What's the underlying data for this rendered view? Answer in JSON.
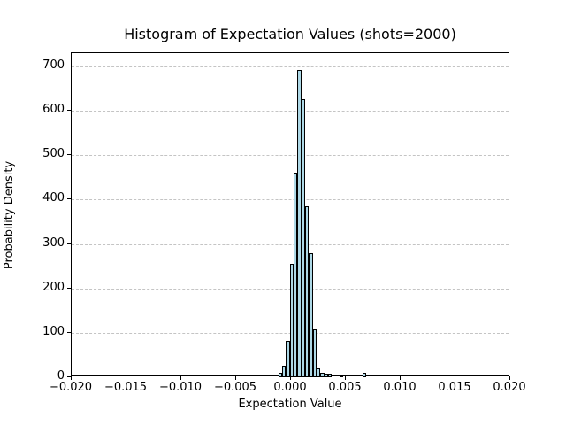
{
  "chart_data": {
    "type": "bar",
    "subtype": "histogram",
    "title": "Histogram of Expectation Values (shots=2000)",
    "xlabel": "Expectation Value",
    "ylabel": "Probability Density",
    "xlim": [
      -0.02,
      0.02
    ],
    "ylim": [
      0,
      730
    ],
    "x_ticks": [
      -0.02,
      -0.015,
      -0.01,
      -0.005,
      0.0,
      0.005,
      0.01,
      0.015,
      0.02
    ],
    "x_tick_labels": [
      "−0.020",
      "−0.015",
      "−0.010",
      "−0.005",
      "0.000",
      "0.005",
      "0.010",
      "0.015",
      "0.020"
    ],
    "y_ticks": [
      0,
      100,
      200,
      300,
      400,
      500,
      600,
      700
    ],
    "y_tick_labels": [
      "0",
      "100",
      "200",
      "300",
      "400",
      "500",
      "600",
      "700"
    ],
    "grid": "horizontal-dashed",
    "legend": "none",
    "bar_color": "#ADD8E6",
    "bar_edge_color": "#000000",
    "bin_width": 0.000349,
    "bars": [
      {
        "x": -0.00116,
        "density": 10
      },
      {
        "x": -0.000811,
        "density": 25
      },
      {
        "x": -0.000462,
        "density": 82
      },
      {
        "x": -0.000113,
        "density": 255
      },
      {
        "x": 0.000236,
        "density": 460
      },
      {
        "x": 0.000585,
        "density": 692
      },
      {
        "x": 0.000934,
        "density": 627
      },
      {
        "x": 0.001283,
        "density": 385
      },
      {
        "x": 0.001632,
        "density": 280
      },
      {
        "x": 0.001981,
        "density": 108
      },
      {
        "x": 0.00233,
        "density": 19
      },
      {
        "x": 0.002679,
        "density": 10
      },
      {
        "x": 0.003028,
        "density": 8
      },
      {
        "x": 0.003377,
        "density": 8
      },
      {
        "x": 0.004424,
        "density": 4
      },
      {
        "x": 0.006518,
        "density": 10
      }
    ]
  }
}
